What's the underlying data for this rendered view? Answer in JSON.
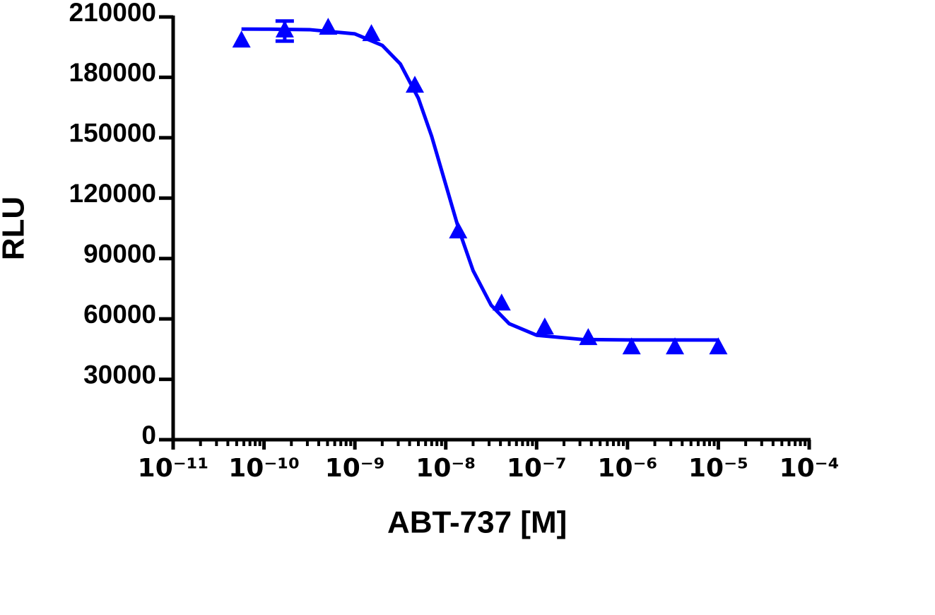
{
  "chart_data": {
    "type": "scatter",
    "x_label": "ABT-737 [M]",
    "y_label": "RLU",
    "xscale": "log",
    "xlim": [
      1e-11,
      0.0001
    ],
    "xticks": [
      {
        "value": 1e-11,
        "label": "10⁻¹¹"
      },
      {
        "value": 1e-10,
        "label": "10⁻¹⁰"
      },
      {
        "value": 1e-09,
        "label": "10⁻⁹"
      },
      {
        "value": 1e-08,
        "label": "10⁻⁸"
      },
      {
        "value": 1e-07,
        "label": "10⁻⁷"
      },
      {
        "value": 1e-06,
        "label": "10⁻⁶"
      },
      {
        "value": 1e-05,
        "label": "10⁻⁵"
      },
      {
        "value": 0.0001,
        "label": "10⁻⁴"
      }
    ],
    "ylim": [
      0,
      210000
    ],
    "yticks": [
      0,
      30000,
      60000,
      90000,
      120000,
      150000,
      180000,
      210000
    ],
    "series": [
      {
        "type": "scatter",
        "marker": "triangle",
        "color": "#0000ff",
        "x": [
          5.65e-11,
          1.69e-10,
          5.08e-10,
          1.52e-09,
          4.57e-09,
          1.37e-08,
          4.12e-08,
          1.23e-07,
          3.7e-07,
          1.11e-06,
          3.33e-06,
          1e-05
        ],
        "values": [
          198000,
          203000,
          204400,
          201200,
          175600,
          103200,
          67400,
          55500,
          50200,
          45600,
          45600,
          45600
        ],
        "errors": [
          null,
          5000,
          null,
          null,
          null,
          null,
          null,
          null,
          null,
          null,
          null,
          null
        ]
      },
      {
        "type": "line",
        "color": "#0000ff",
        "x": [
          5.65e-11,
          1e-10,
          3.16e-10,
          1e-09,
          2e-09,
          3.16e-09,
          5e-09,
          7e-09,
          1e-08,
          1.4e-08,
          2e-08,
          3.16e-08,
          5e-08,
          1e-07,
          3.16e-07,
          1e-06,
          1e-05
        ],
        "values": [
          204000,
          203960,
          203700,
          201600,
          195900,
          186700,
          169600,
          150700,
          126750,
          104100,
          84000,
          66800,
          57600,
          51900,
          49800,
          49540,
          49500
        ]
      }
    ]
  }
}
